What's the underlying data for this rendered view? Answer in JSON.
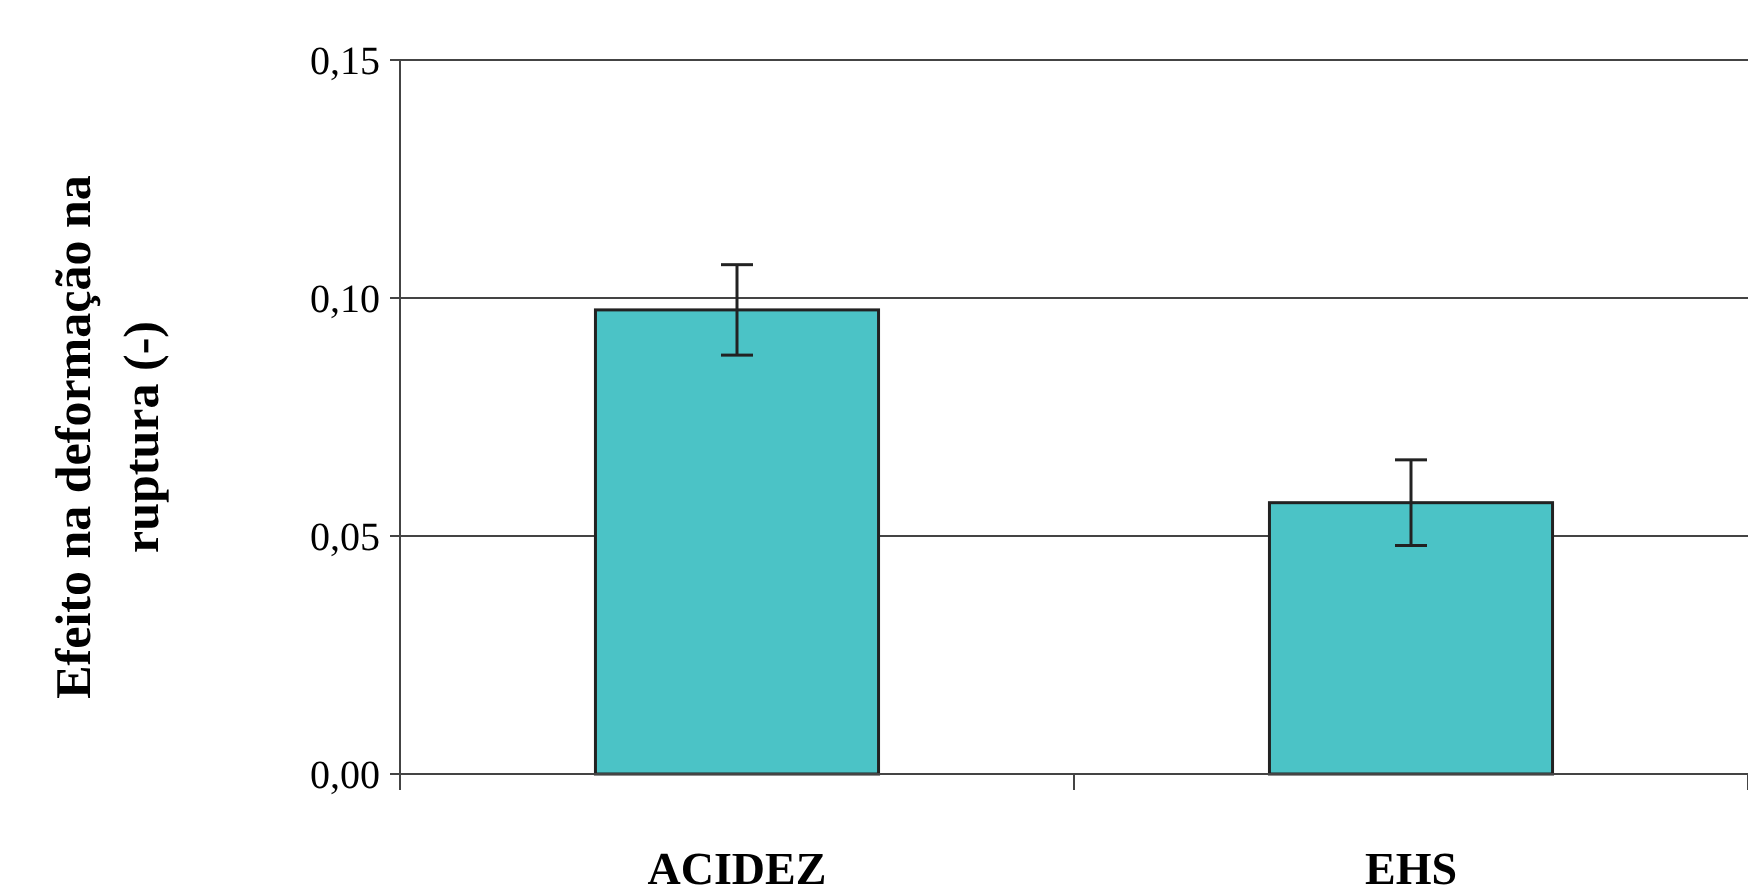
{
  "chart_data": {
    "type": "bar",
    "ylabel": "Efeito na deformação na\nruptura (-)",
    "categories": [
      "ACIDEZ",
      "EHS"
    ],
    "values": [
      0.0975,
      0.057
    ],
    "errors": [
      0.0095,
      0.009
    ],
    "color": "#4bc3c6",
    "ylim": [
      0,
      0.15
    ],
    "yticks": [
      {
        "value": 0,
        "label": "0,00"
      },
      {
        "value": 0.05,
        "label": "0,05"
      },
      {
        "value": 0.1,
        "label": "0,10"
      },
      {
        "value": 0.15,
        "label": "0,15"
      }
    ],
    "grid": "y"
  }
}
